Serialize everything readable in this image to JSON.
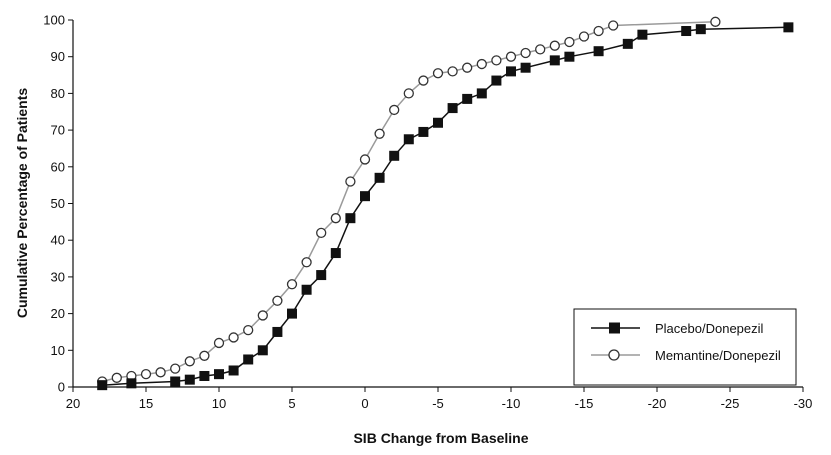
{
  "chart_data": {
    "type": "line",
    "title": "",
    "xlabel": "SIB Change from Baseline",
    "ylabel": "Cumulative Percentage of Patients",
    "xlim": [
      20,
      -30
    ],
    "ylim": [
      0,
      100
    ],
    "x_ticks": [
      "20",
      "15",
      "10",
      "5",
      "0",
      "-5",
      "-10",
      "-15",
      "-20",
      "-25",
      "-30"
    ],
    "y_ticks": [
      "0",
      "10",
      "20",
      "30",
      "40",
      "50",
      "60",
      "70",
      "80",
      "90",
      "100"
    ],
    "grid": false,
    "legend_position": "bottom-right",
    "series": [
      {
        "name": "Placebo/Donepezil",
        "marker": "filled-square",
        "color": "#111111",
        "points": [
          [
            18,
            0.5
          ],
          [
            16,
            1
          ],
          [
            13,
            1.5
          ],
          [
            12,
            2
          ],
          [
            11,
            3
          ],
          [
            10,
            3.5
          ],
          [
            9,
            4.5
          ],
          [
            8,
            7.5
          ],
          [
            7,
            10
          ],
          [
            6,
            15
          ],
          [
            5,
            20
          ],
          [
            4,
            26.5
          ],
          [
            3,
            30.5
          ],
          [
            2,
            36.5
          ],
          [
            1,
            46
          ],
          [
            0,
            52
          ],
          [
            -1,
            57
          ],
          [
            -2,
            63
          ],
          [
            -3,
            67.5
          ],
          [
            -4,
            69.5
          ],
          [
            -5,
            72
          ],
          [
            -6,
            76
          ],
          [
            -7,
            78.5
          ],
          [
            -8,
            80
          ],
          [
            -9,
            83.5
          ],
          [
            -10,
            86
          ],
          [
            -11,
            87
          ],
          [
            -13,
            89
          ],
          [
            -14,
            90
          ],
          [
            -16,
            91.5
          ],
          [
            -18,
            93.5
          ],
          [
            -19,
            96
          ],
          [
            -22,
            97
          ],
          [
            -23,
            97.5
          ],
          [
            -29,
            98
          ]
        ]
      },
      {
        "name": "Memantine/Donepezil",
        "marker": "open-circle",
        "color": "#9a9a9a",
        "points": [
          [
            18,
            1.5
          ],
          [
            17,
            2.5
          ],
          [
            16,
            3
          ],
          [
            15,
            3.5
          ],
          [
            14,
            4
          ],
          [
            13,
            5
          ],
          [
            12,
            7
          ],
          [
            11,
            8.5
          ],
          [
            10,
            12
          ],
          [
            9,
            13.5
          ],
          [
            8,
            15.5
          ],
          [
            7,
            19.5
          ],
          [
            6,
            23.5
          ],
          [
            5,
            28
          ],
          [
            4,
            34
          ],
          [
            3,
            42
          ],
          [
            2,
            46
          ],
          [
            1,
            56
          ],
          [
            0,
            62
          ],
          [
            -1,
            69
          ],
          [
            -2,
            75.5
          ],
          [
            -3,
            80
          ],
          [
            -4,
            83.5
          ],
          [
            -5,
            85.5
          ],
          [
            -6,
            86
          ],
          [
            -7,
            87
          ],
          [
            -8,
            88
          ],
          [
            -9,
            89
          ],
          [
            -10,
            90
          ],
          [
            -11,
            91
          ],
          [
            -12,
            92
          ],
          [
            -13,
            93
          ],
          [
            -14,
            94
          ],
          [
            -15,
            95.5
          ],
          [
            -16,
            97
          ],
          [
            -17,
            98.5
          ],
          [
            -24,
            99.5
          ]
        ]
      }
    ]
  }
}
